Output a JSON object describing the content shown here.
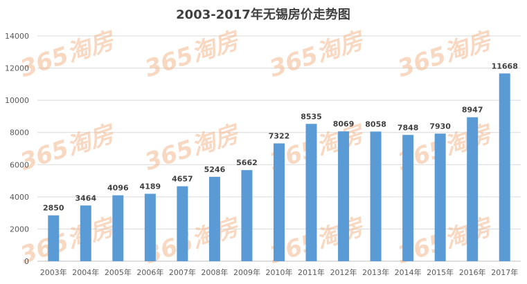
{
  "chart_data": {
    "type": "bar",
    "title": "2003-2017年无锡房价走势图",
    "categories": [
      "2003年",
      "2004年",
      "2005年",
      "2006年",
      "2007年",
      "2008年",
      "2009年",
      "2010年",
      "2011年",
      "2012年",
      "2013年",
      "2014年",
      "2015年",
      "2016年",
      "2017年"
    ],
    "values": [
      2850,
      3464,
      4096,
      4189,
      4657,
      5246,
      5662,
      7322,
      8535,
      8069,
      8058,
      7848,
      7930,
      8947,
      11668
    ],
    "ylim": [
      0,
      14000
    ],
    "yticks": [
      0,
      2000,
      4000,
      6000,
      8000,
      10000,
      12000,
      14000
    ],
    "grid": true,
    "bar_color": "#5b9bd5",
    "xlabel": "",
    "ylabel": ""
  },
  "watermark": {
    "text": "365淘房",
    "color": "#f3b98f"
  }
}
